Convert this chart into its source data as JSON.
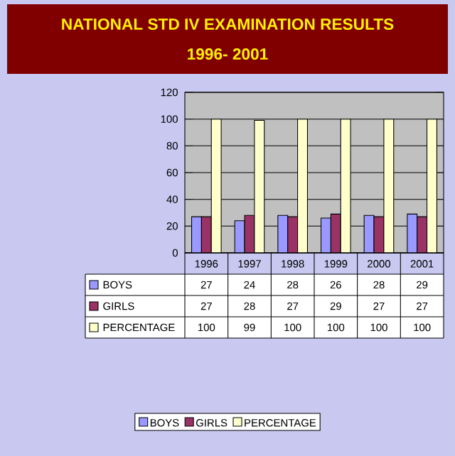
{
  "chart_data": {
    "type": "bar",
    "title": "NATIONAL STD IV EXAMINATION RESULTS",
    "subtitle": "1996- 2001",
    "categories": [
      "1996",
      "1997",
      "1998",
      "1999",
      "2000",
      "2001"
    ],
    "series": [
      {
        "name": "BOYS",
        "color": "#9999ff",
        "values": [
          27,
          24,
          28,
          26,
          28,
          29
        ]
      },
      {
        "name": "GIRLS",
        "color": "#993366",
        "values": [
          27,
          28,
          27,
          29,
          27,
          27
        ]
      },
      {
        "name": "PERCENTAGE",
        "color": "#ffffcc",
        "values": [
          100,
          99,
          100,
          100,
          100,
          100
        ]
      }
    ],
    "ylim": [
      0,
      120
    ],
    "yticks": [
      0,
      20,
      40,
      60,
      80,
      100,
      120
    ],
    "grid": "y",
    "legend": "bottom",
    "data_labels": true
  }
}
